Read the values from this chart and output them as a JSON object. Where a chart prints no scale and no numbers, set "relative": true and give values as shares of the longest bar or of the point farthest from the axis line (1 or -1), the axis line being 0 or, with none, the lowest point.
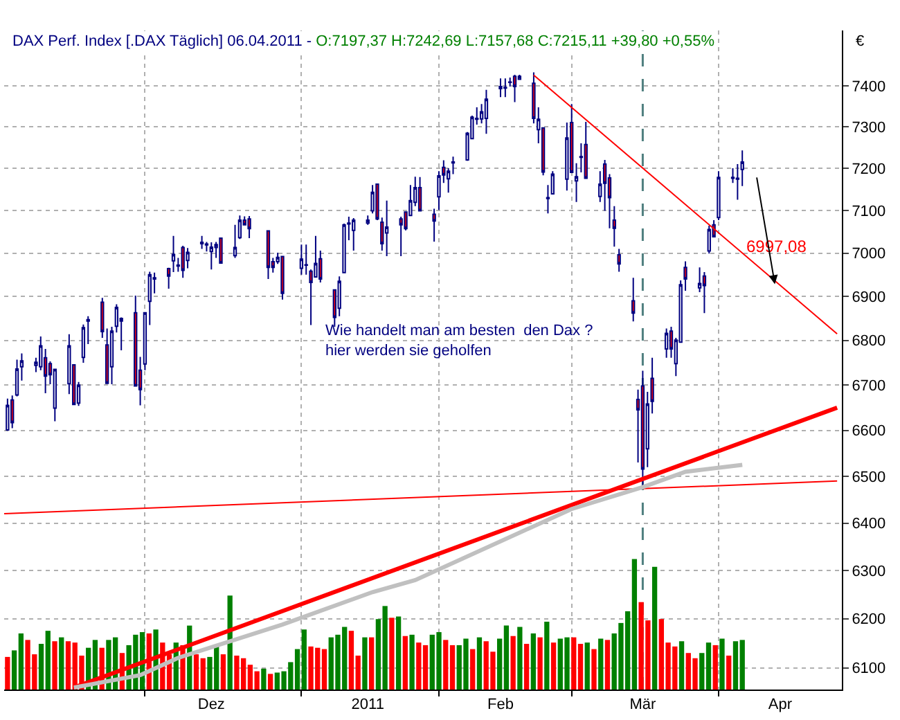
{
  "chart_data": [
    {
      "type": "candlestick",
      "title": "DAX Perf. Index [.DAX Täglich] 06.04.2011 -",
      "subtitle": "O:7197,37 H:7242,69 L:7157,68 C:7215,11 +39,80 +0,55%",
      "ylabel": "€",
      "x": [
        "2010-11-02",
        "2010-11-03",
        "2010-11-04",
        "2010-11-05",
        "2010-11-08",
        "2010-11-09",
        "2010-11-10",
        "2010-11-11",
        "2010-11-12",
        "2010-11-15",
        "2010-11-16",
        "2010-11-17",
        "2010-11-18",
        "2010-11-19",
        "2010-11-22",
        "2010-11-23",
        "2010-11-24",
        "2010-11-25",
        "2010-11-26",
        "2010-11-29",
        "2010-11-30",
        "2010-12-01",
        "2010-12-02",
        "2010-12-03",
        "2010-12-06",
        "2010-12-07",
        "2010-12-08",
        "2010-12-09",
        "2010-12-10",
        "2010-12-13",
        "2010-12-14",
        "2010-12-15",
        "2010-12-16",
        "2010-12-17",
        "2010-12-20",
        "2010-12-21",
        "2010-12-22",
        "2010-12-23",
        "2010-12-27",
        "2010-12-28",
        "2010-12-29",
        "2010-12-30",
        "2011-01-03",
        "2011-01-04",
        "2011-01-05",
        "2011-01-06",
        "2011-01-07",
        "2011-01-10",
        "2011-01-11",
        "2011-01-12",
        "2011-01-13",
        "2011-01-14",
        "2011-01-17",
        "2011-01-18",
        "2011-01-19",
        "2011-01-20",
        "2011-01-21",
        "2011-01-24",
        "2011-01-25",
        "2011-01-26",
        "2011-01-27",
        "2011-01-28",
        "2011-01-31",
        "2011-02-01",
        "2011-02-02",
        "2011-02-03",
        "2011-02-04",
        "2011-02-07",
        "2011-02-08",
        "2011-02-09",
        "2011-02-10",
        "2011-02-11",
        "2011-02-14",
        "2011-02-15",
        "2011-02-16",
        "2011-02-17",
        "2011-02-18",
        "2011-02-21",
        "2011-02-22",
        "2011-02-23",
        "2011-02-24",
        "2011-02-25",
        "2011-02-28",
        "2011-03-01",
        "2011-03-02",
        "2011-03-03",
        "2011-03-04",
        "2011-03-07",
        "2011-03-08",
        "2011-03-09",
        "2011-03-10",
        "2011-03-11",
        "2011-03-14",
        "2011-03-15",
        "2011-03-16",
        "2011-03-17",
        "2011-03-18",
        "2011-03-21",
        "2011-03-22",
        "2011-03-23",
        "2011-03-24",
        "2011-03-25",
        "2011-03-28",
        "2011-03-29",
        "2011-03-30",
        "2011-03-31",
        "2011-04-01",
        "2011-04-04",
        "2011-04-05",
        "2011-04-06"
      ],
      "ohlc": [
        [
          6601,
          6670,
          6599,
          6655
        ],
        [
          6667,
          6677,
          6605,
          6617
        ],
        [
          6678,
          6757,
          6675,
          6736
        ],
        [
          6741,
          6771,
          6710,
          6754
        ],
        [
          6744,
          6761,
          6729,
          6751
        ],
        [
          6741,
          6809,
          6733,
          6788
        ],
        [
          6761,
          6781,
          6682,
          6720
        ],
        [
          6748,
          6753,
          6702,
          6723
        ],
        [
          6649,
          6736,
          6620,
          6735
        ],
        [
          6703,
          6814,
          6680,
          6788
        ],
        [
          6745,
          6746,
          6656,
          6657
        ],
        [
          6660,
          6707,
          6654,
          6700
        ],
        [
          6762,
          6836,
          6750,
          6829
        ],
        [
          6844,
          6855,
          6792,
          6847
        ],
        [
          6887,
          6897,
          6806,
          6820
        ],
        [
          6790,
          6827,
          6704,
          6704
        ],
        [
          6741,
          6831,
          6702,
          6821
        ],
        [
          6832,
          6882,
          6818,
          6875
        ],
        [
          6844,
          6852,
          6778,
          6850
        ],
        [
          6863,
          6902,
          6698,
          6698
        ],
        [
          6733,
          6763,
          6655,
          6690
        ],
        [
          6747,
          6864,
          6733,
          6863
        ],
        [
          6889,
          6957,
          6835,
          6950
        ],
        [
          6940,
          6955,
          6907,
          6943
        ],
        [
          6964,
          6966,
          6918,
          6947
        ],
        [
          6982,
          7040,
          6956,
          6997
        ],
        [
          6970,
          6989,
          6957,
          6972
        ],
        [
          7013,
          7017,
          6943,
          6960
        ],
        [
          6983,
          7012,
          6965,
          7002
        ],
        [
          7022,
          7040,
          7010,
          7025
        ],
        [
          7019,
          7026,
          7004,
          7021
        ],
        [
          7004,
          7025,
          6962,
          7014
        ],
        [
          7013,
          7026,
          6989,
          7020
        ],
        [
          7035,
          7036,
          6976,
          6977
        ],
        [
          6994,
          7066,
          6989,
          7013
        ],
        [
          7036,
          7088,
          7033,
          7077
        ],
        [
          7077,
          7086,
          7066,
          7066
        ],
        [
          7080,
          7087,
          7035,
          7057
        ],
        [
          7052,
          7053,
          6940,
          6967
        ],
        [
          6980,
          6989,
          6955,
          6967
        ],
        [
          6980,
          7001,
          6975,
          6990
        ],
        [
          6992,
          6993,
          6893,
          6907
        ],
        [
          6965,
          7020,
          6950,
          6986
        ],
        [
          6972,
          7020,
          6950,
          6973
        ],
        [
          6958,
          6962,
          6835,
          6932
        ],
        [
          6945,
          7040,
          6945,
          6976
        ],
        [
          6987,
          7006,
          6932,
          6940
        ],
        [
          6915,
          6916,
          6831,
          6852
        ],
        [
          6873,
          6946,
          6855,
          6935
        ],
        [
          6955,
          7069,
          6955,
          7066
        ],
        [
          7068,
          7085,
          7030,
          7070
        ],
        [
          7053,
          7082,
          7006,
          7077
        ],
        [
          7070,
          7088,
          7066,
          7077
        ],
        [
          7099,
          7160,
          7093,
          7143
        ],
        [
          7162,
          7162,
          7077,
          7080
        ],
        [
          7072,
          7083,
          7006,
          7022
        ],
        [
          7047,
          7123,
          6993,
          7061
        ],
        [
          7080,
          7085,
          6993,
          7066
        ],
        [
          7096,
          7097,
          7053,
          7057
        ],
        [
          7088,
          7160,
          7088,
          7123
        ],
        [
          7119,
          7180,
          7110,
          7154
        ],
        [
          7154,
          7179,
          7099,
          7099
        ],
        [
          7091,
          7104,
          7027,
          7075
        ],
        [
          7132,
          7193,
          7101,
          7182
        ],
        [
          7202,
          7219,
          7165,
          7184
        ],
        [
          7175,
          7200,
          7142,
          7193
        ],
        [
          7213,
          7228,
          7186,
          7215
        ],
        [
          7220,
          7287,
          7218,
          7284
        ],
        [
          7271,
          7327,
          7271,
          7323
        ],
        [
          7318,
          7347,
          7305,
          7320
        ],
        [
          7319,
          7355,
          7308,
          7336
        ],
        [
          7320,
          7390,
          7283,
          7367
        ],
        [
          7393,
          7418,
          7372,
          7398
        ],
        [
          7394,
          7418,
          7372,
          7396
        ],
        [
          7408,
          7420,
          7398,
          7409
        ],
        [
          7423,
          7427,
          7360,
          7398
        ],
        [
          7416,
          7427,
          7416,
          7423
        ],
        [
          7406,
          7433,
          7308,
          7320
        ],
        [
          7293,
          7347,
          7260,
          7318
        ],
        [
          7297,
          7297,
          7183,
          7191
        ],
        [
          7128,
          7160,
          7093,
          7130
        ],
        [
          7139,
          7193,
          7139,
          7186
        ],
        [
          7174,
          7310,
          7147,
          7273
        ],
        [
          7310,
          7355,
          7190,
          7190
        ],
        [
          7170,
          7212,
          7120,
          7180
        ],
        [
          7226,
          7260,
          7190,
          7228
        ],
        [
          7257,
          7312,
          7176,
          7176
        ],
        [
          7133,
          7193,
          7120,
          7162
        ],
        [
          7210,
          7220,
          7099,
          7164
        ],
        [
          7177,
          7186,
          7058,
          7130
        ],
        [
          7077,
          7110,
          7015,
          7058
        ],
        [
          6996,
          7010,
          6957,
          6975
        ],
        [
          6890,
          6943,
          6843,
          6862
        ],
        [
          6668,
          6690,
          6530,
          6645
        ],
        [
          6698,
          6732,
          6475,
          6516
        ],
        [
          6560,
          6685,
          6520,
          6658
        ],
        [
          6715,
          6761,
          6637,
          6664
        ],
        [
          6781,
          6827,
          6761,
          6816
        ],
        [
          6821,
          6831,
          6761,
          6781
        ],
        [
          6748,
          6806,
          6720,
          6801
        ],
        [
          6796,
          6937,
          6796,
          6927
        ],
        [
          6967,
          6981,
          6913,
          6940
        ],
        [
          6920,
          6967,
          6910,
          6930
        ],
        [
          6947,
          6956,
          6862,
          6925
        ],
        [
          7005,
          7064,
          6999,
          7055
        ],
        [
          7066,
          7077,
          7038,
          7038
        ],
        [
          7083,
          7193,
          7077,
          7178
        ],
        [
          7176,
          7200,
          7165,
          7178
        ],
        [
          7174,
          7210,
          7125,
          7176
        ],
        [
          7197.37,
          7242.69,
          7157.68,
          7215.11
        ]
      ],
      "series": [
        {
          "type": "line",
          "color": "#ff0000",
          "x": [
            "2011-02-21",
            "2011-04-26"
          ],
          "values": [
            7426,
            6815
          ]
        },
        {
          "type": "line",
          "color": "#ff0000",
          "x": [
            "2010-11-16",
            "2011-04-26"
          ],
          "values": [
            6060,
            6650
          ]
        },
        {
          "type": "line",
          "color": "#ff0000",
          "x": [
            "2010-11-01T07:00",
            "2011-04-26"
          ],
          "values": [
            6420,
            6490
          ]
        },
        {
          "type": "line",
          "color": "#c0c0c0",
          "x": [
            "2010-11-16",
            "2010-11-30",
            "2010-12-08",
            "2010-12-30",
            "2011-01-18",
            "2011-01-27",
            "2011-03-01",
            "2011-03-16",
            "2011-03-25",
            "2011-04-06"
          ],
          "values": [
            6060,
            6085,
            6120,
            6188,
            6255,
            6280,
            6430,
            6477,
            6510,
            6525
          ]
        }
      ],
      "ref_lines": [
        {
          "axis": "x",
          "value": "2011-03-16",
          "color": "#4f7f7f",
          "line_style": "dashed"
        }
      ],
      "annotations": [
        {
          "text": "6997,08",
          "x": "2011-04-05",
          "y": 6997.08
        },
        "Wie handelt man am besten  den Dax ?\nhier werden sie geholfen"
      ],
      "xlim": [
        "2010-11-01T07:00",
        "2011-04-27"
      ],
      "xticks": [
        {
          "value": "2010-12-01",
          "label": null
        },
        {
          "value": "2010-12-15",
          "label": "Dez"
        },
        {
          "value": "2011-01-03",
          "label": null
        },
        {
          "value": "2011-01-17",
          "label": "2011"
        },
        {
          "value": "2011-02-01",
          "label": null
        },
        {
          "value": "2011-02-14",
          "label": "Feb"
        },
        {
          "value": "2011-03-01",
          "label": null
        },
        {
          "value": "2011-03-16",
          "label": "Mär"
        },
        {
          "value": "2011-04-01",
          "label": null
        },
        {
          "value": "2011-04-14",
          "label": "Apr"
        }
      ],
      "ylim": [
        6056,
        7537
      ],
      "yticks": [
        6100,
        6200,
        6300,
        6400,
        6500,
        6600,
        6700,
        6800,
        6900,
        7000,
        7100,
        7200,
        7300,
        7400
      ],
      "log": true,
      "grid": true
    },
    {
      "type": "bar",
      "relative": true,
      "categories": [
        null,
        null,
        null,
        null,
        null,
        null,
        null,
        null,
        null,
        null,
        null,
        null,
        null,
        null,
        null,
        null,
        null,
        null,
        null,
        null,
        null,
        null,
        null,
        null,
        null,
        null,
        null,
        null,
        null,
        null,
        null,
        null,
        null,
        null,
        null,
        null,
        null,
        null,
        null,
        null,
        null,
        null,
        null,
        null,
        null,
        null,
        null,
        null,
        null,
        null,
        null,
        null,
        null,
        null,
        null,
        null,
        null,
        null,
        null,
        null,
        null,
        null,
        null,
        null,
        null,
        null,
        null,
        null,
        null,
        null,
        null,
        null,
        null,
        null,
        null,
        null,
        null,
        null,
        null,
        null,
        null,
        null,
        null,
        null,
        null,
        null,
        null,
        null,
        null,
        null,
        null,
        null,
        null,
        null,
        null,
        null,
        null,
        null,
        null,
        null,
        null,
        null,
        null,
        null,
        null,
        null,
        null,
        null,
        null,
        null
      ],
      "values": [
        0.25,
        0.3,
        0.43,
        0.38,
        0.27,
        0.35,
        0.45,
        0.37,
        0.4,
        0.37,
        0.36,
        0.26,
        0.32,
        0.38,
        0.32,
        0.38,
        0.4,
        0.28,
        0.34,
        0.42,
        0.44,
        0.43,
        0.46,
        0.36,
        0.27,
        0.36,
        0.34,
        0.49,
        0.27,
        0.24,
        0.25,
        0.33,
        0.27,
        0.72,
        0.26,
        0.24,
        0.19,
        0.14,
        0.16,
        0.12,
        0.13,
        0.14,
        0.21,
        0.31,
        0.46,
        0.33,
        0.32,
        0.31,
        0.4,
        0.42,
        0.48,
        0.45,
        0.26,
        0.4,
        0.4,
        0.54,
        0.64,
        0.55,
        0.56,
        0.41,
        0.42,
        0.36,
        0.34,
        0.42,
        0.44,
        0.38,
        0.34,
        0.34,
        0.39,
        0.31,
        0.4,
        0.37,
        0.29,
        0.39,
        0.49,
        0.41,
        0.48,
        0.35,
        0.43,
        0.4,
        0.52,
        0.36,
        0.39,
        0.4,
        0.4,
        0.35,
        0.36,
        0.31,
        0.39,
        0.38,
        0.43,
        0.51,
        0.6,
        1,
        0.67,
        0.53,
        0.94,
        0.54,
        0.36,
        0.33,
        0.37,
        0.28,
        0.24,
        0.28,
        0.36,
        0.34,
        0.39,
        0.26,
        0.37,
        0.38
      ],
      "colors": [
        "#ff0000",
        "#008000",
        "#008000",
        "#ff0000",
        "#ff0000",
        "#008000",
        "#008000",
        "#ff0000",
        "#008000",
        "#ff0000",
        "#ff0000",
        "#ff0000",
        "#008000",
        "#008000",
        "#ff0000",
        "#008000",
        "#008000",
        "#ff0000",
        "#008000",
        "#008000",
        "#008000",
        "#ff0000",
        "#008000",
        "#ff0000",
        "#ff0000",
        "#008000",
        "#ff0000",
        "#008000",
        "#ff0000",
        "#ff0000",
        "#008000",
        "#008000",
        "#ff0000",
        "#008000",
        "#ff0000",
        "#ff0000",
        "#ff0000",
        "#ff0000",
        "#008000",
        "#ff0000",
        "#008000",
        "#008000",
        "#008000",
        "#008000",
        "#008000",
        "#ff0000",
        "#ff0000",
        "#ff0000",
        "#008000",
        "#008000",
        "#008000",
        "#ff0000",
        "#ff0000",
        "#008000",
        "#ff0000",
        "#008000",
        "#008000",
        "#ff0000",
        "#008000",
        "#ff0000",
        "#008000",
        "#ff0000",
        "#ff0000",
        "#008000",
        "#008000",
        "#ff0000",
        "#ff0000",
        "#008000",
        "#008000",
        "#ff0000",
        "#008000",
        "#ff0000",
        "#ff0000",
        "#008000",
        "#008000",
        "#ff0000",
        "#008000",
        "#ff0000",
        "#008000",
        "#ff0000",
        "#008000",
        "#ff0000",
        "#008000",
        "#008000",
        "#ff0000",
        "#ff0000",
        "#008000",
        "#ff0000",
        "#008000",
        "#ff0000",
        "#008000",
        "#008000",
        "#008000",
        "#008000",
        "#ff0000",
        "#ff0000",
        "#008000",
        "#ff0000",
        "#ff0000",
        "#ff0000",
        "#008000",
        "#ff0000",
        "#ff0000",
        "#008000",
        "#008000",
        "#ff0000",
        "#008000",
        "#ff0000",
        "#008000",
        "#008000"
      ]
    }
  ]
}
